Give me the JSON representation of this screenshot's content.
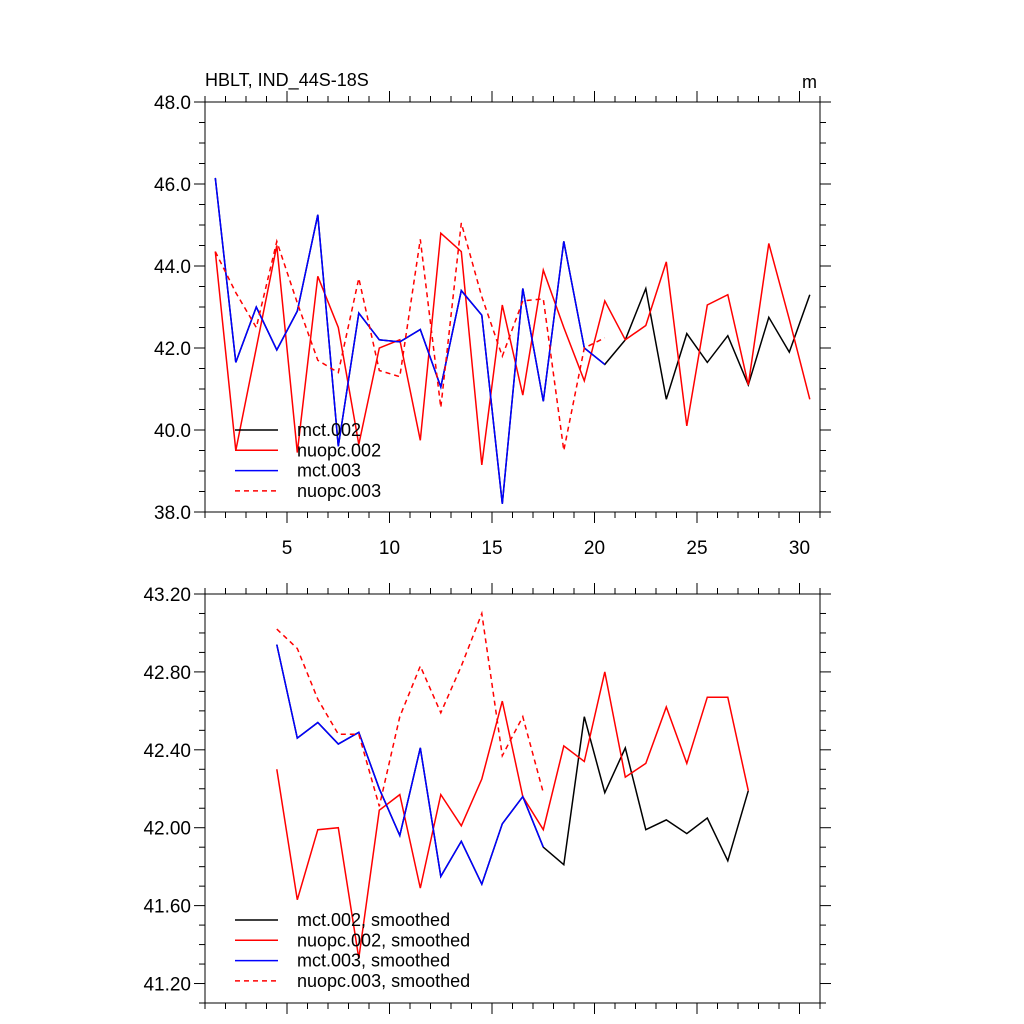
{
  "chart_data": [
    {
      "type": "line",
      "title": "HBLT, IND_44S-18S",
      "units": "m",
      "xlabel": "",
      "ylabel": "",
      "xlim": [
        1,
        31
      ],
      "ylim": [
        38,
        48
      ],
      "xticks": [
        5,
        10,
        15,
        20,
        25,
        30
      ],
      "yticks": [
        "38.0",
        "40.0",
        "42.0",
        "44.0",
        "46.0",
        "48.0"
      ],
      "legend_position": "bottom-left",
      "series": [
        {
          "name": "mct.002",
          "color": "#000000",
          "dash": false,
          "x0": 1.5,
          "values": [
            46.15,
            41.65,
            43.0,
            41.95,
            42.9,
            45.25,
            39.6,
            42.85,
            42.2,
            42.15,
            42.45,
            41.05,
            43.4,
            42.8,
            38.2,
            43.45,
            40.7,
            44.6,
            42.0,
            41.6,
            42.2,
            43.45,
            40.75,
            42.35,
            41.65,
            42.3,
            41.1,
            42.75,
            41.9,
            43.3
          ]
        },
        {
          "name": "nuopc.002",
          "color": "#ff0000",
          "dash": false,
          "x0": 1.5,
          "values": [
            44.35,
            39.5,
            42.0,
            44.5,
            39.45,
            43.75,
            42.5,
            39.65,
            42.0,
            42.2,
            39.75,
            44.8,
            44.35,
            39.15,
            43.05,
            40.85,
            43.9,
            42.5,
            41.2,
            43.15,
            42.2,
            42.55,
            44.1,
            40.1,
            43.05,
            43.3,
            41.1,
            44.55,
            42.7,
            40.75
          ]
        },
        {
          "name": "mct.003",
          "color": "#0000ff",
          "dash": false,
          "x0": 1.5,
          "values": [
            46.15,
            41.65,
            43.0,
            41.95,
            42.9,
            45.25,
            39.6,
            42.85,
            42.2,
            42.15,
            42.45,
            41.05,
            43.4,
            42.8,
            38.2,
            43.45,
            40.7,
            44.6,
            42.0,
            41.6
          ]
        },
        {
          "name": "nuopc.003",
          "color": "#ff0000",
          "dash": true,
          "x0": 1.5,
          "values": [
            44.35,
            43.35,
            42.5,
            44.6,
            43.1,
            41.7,
            41.4,
            43.7,
            41.45,
            41.3,
            44.65,
            40.55,
            45.05,
            43.25,
            41.8,
            43.15,
            43.2,
            39.5,
            42.0,
            42.25
          ]
        }
      ]
    },
    {
      "type": "line",
      "title": "",
      "xlabel": "",
      "ylabel": "",
      "xlim": [
        1,
        31
      ],
      "ylim": [
        41.1,
        43.2
      ],
      "xticks": [],
      "yticks": [
        "41.20",
        "41.60",
        "42.00",
        "42.40",
        "42.80",
        "43.20"
      ],
      "legend_position": "bottom-left",
      "series": [
        {
          "name": "mct.002, smoothed",
          "color": "#000000",
          "dash": false,
          "x0": 4.5,
          "values": [
            42.94,
            42.46,
            42.54,
            42.43,
            42.49,
            42.2,
            41.96,
            42.41,
            41.75,
            41.93,
            41.71,
            42.02,
            42.16,
            41.9,
            41.81,
            42.57,
            42.18,
            42.41,
            41.99,
            42.04,
            41.97,
            42.05,
            41.83,
            42.19
          ]
        },
        {
          "name": "nuopc.002, smoothed",
          "color": "#ff0000",
          "dash": false,
          "x0": 4.5,
          "values": [
            42.3,
            41.63,
            41.99,
            42.0,
            41.33,
            42.09,
            42.17,
            41.69,
            42.17,
            42.01,
            42.25,
            42.65,
            42.16,
            41.99,
            42.42,
            42.34,
            42.8,
            42.26,
            42.33,
            42.62,
            42.33,
            42.67,
            42.67,
            42.19
          ]
        },
        {
          "name": "mct.003, smoothed",
          "color": "#0000ff",
          "dash": false,
          "x0": 4.5,
          "values": [
            42.94,
            42.46,
            42.54,
            42.43,
            42.49,
            42.2,
            41.96,
            42.41,
            41.75,
            41.93,
            41.71,
            42.02,
            42.16,
            41.9
          ]
        },
        {
          "name": "nuopc.003, smoothed",
          "color": "#ff0000",
          "dash": true,
          "x0": 4.5,
          "values": [
            43.02,
            42.92,
            42.66,
            42.48,
            42.48,
            42.11,
            42.57,
            42.83,
            42.59,
            42.83,
            43.1,
            42.37,
            42.57,
            42.18
          ]
        }
      ]
    }
  ]
}
